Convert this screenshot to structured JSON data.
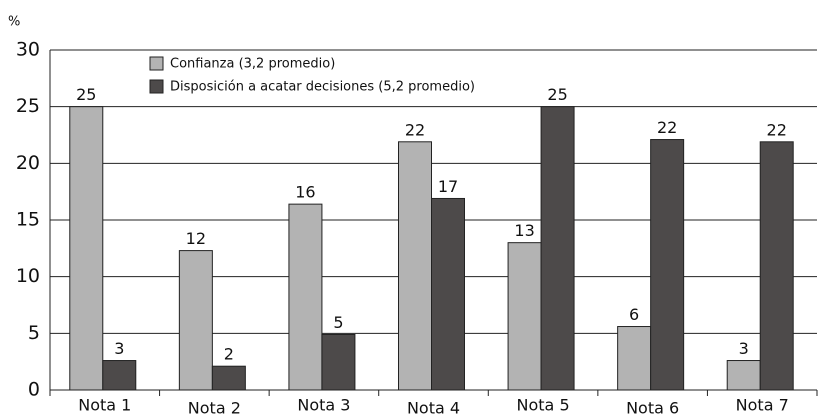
{
  "chart_data": {
    "type": "bar",
    "y_label": "%",
    "categories": [
      "Nota 1",
      "Nota 2",
      "Nota 3",
      "Nota 4",
      "Nota 5",
      "Nota 6",
      "Nota 7"
    ],
    "series": [
      {
        "name": "Confianza (3,2 promedio)",
        "color": "#b3b3b3",
        "values": [
          25,
          12.3,
          16.4,
          21.9,
          13,
          5.6,
          2.6
        ],
        "value_labels": [
          "25",
          "12",
          "16",
          "22",
          "13",
          "6",
          "3"
        ]
      },
      {
        "name": "Disposición a acatar decisiones (5,2 promedio)",
        "color": "#4d4a4a",
        "values": [
          2.6,
          2.1,
          4.9,
          16.9,
          25,
          22.1,
          21.9
        ],
        "value_labels": [
          "3",
          "2",
          "5",
          "17",
          "25",
          "22",
          "22"
        ]
      }
    ],
    "ylim": [
      0,
      30
    ],
    "yticks": [
      0,
      5,
      10,
      15,
      20,
      25,
      30
    ],
    "grid": true,
    "legend": "top-left"
  }
}
